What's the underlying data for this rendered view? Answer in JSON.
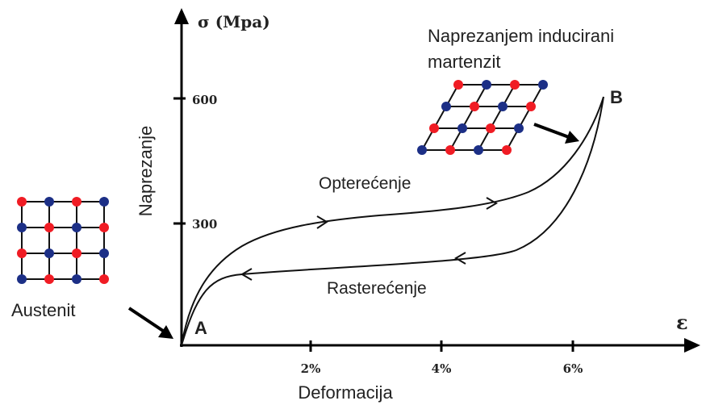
{
  "axes": {
    "y_symbol": "σ (Mpa)",
    "y_title": "Naprezanje",
    "y_ticks": [
      "600",
      "300"
    ],
    "x_symbol": "ε",
    "x_title": "Deformacija",
    "x_ticks": [
      "2%",
      "4%",
      "6%"
    ]
  },
  "points": {
    "a": "A",
    "b": "B"
  },
  "labels": {
    "loading": "Opterećenje",
    "unloading": "Rasterećenje",
    "martensite": [
      "Naprezanjem inducirani",
      "martenzit"
    ],
    "austenite": "Austenit"
  }
}
